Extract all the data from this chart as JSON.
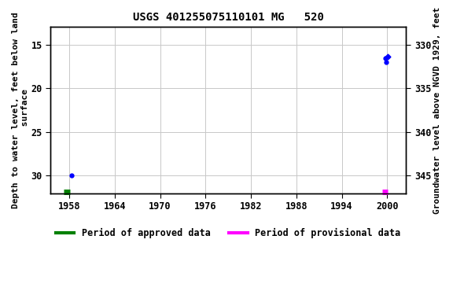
{
  "title": "USGS 401255075110101 MG   520",
  "ylabel_left": "Depth to water level, feet below land\n surface",
  "ylabel_right": "Groundwater level above NGVD 1929, feet",
  "xlim": [
    1955.5,
    2002.5
  ],
  "ylim_left": [
    13.0,
    32.0
  ],
  "ylim_right": [
    347.0,
    328.0
  ],
  "xticks": [
    1958,
    1964,
    1970,
    1976,
    1982,
    1988,
    1994,
    2000
  ],
  "yticks_left": [
    15,
    20,
    25,
    30
  ],
  "yticks_right": [
    345,
    340,
    335,
    330
  ],
  "pt1958_x": 1958.3,
  "pt1958_y": 30.0,
  "pt2000a_x": 1999.75,
  "pt2000a_y": 16.6,
  "pt2000b_x": 1999.9,
  "pt2000b_y": 17.0,
  "pt2000c_x": 2000.05,
  "pt2000c_y": 16.4,
  "approved_bar_x1": 1957.3,
  "approved_bar_x2": 1958.1,
  "provisional_bar_x1": 1999.3,
  "provisional_bar_x2": 2000.1,
  "bar_y": 31.85,
  "background_color": "#ffffff",
  "plot_bg_color": "#ffffff",
  "grid_color": "#c8c8c8",
  "data_point_color": "#0000ff",
  "approved_color": "#008000",
  "provisional_color": "#ff00ff",
  "font_family": "monospace",
  "title_fontsize": 10,
  "label_fontsize": 8,
  "tick_fontsize": 8.5,
  "legend_fontsize": 8.5
}
